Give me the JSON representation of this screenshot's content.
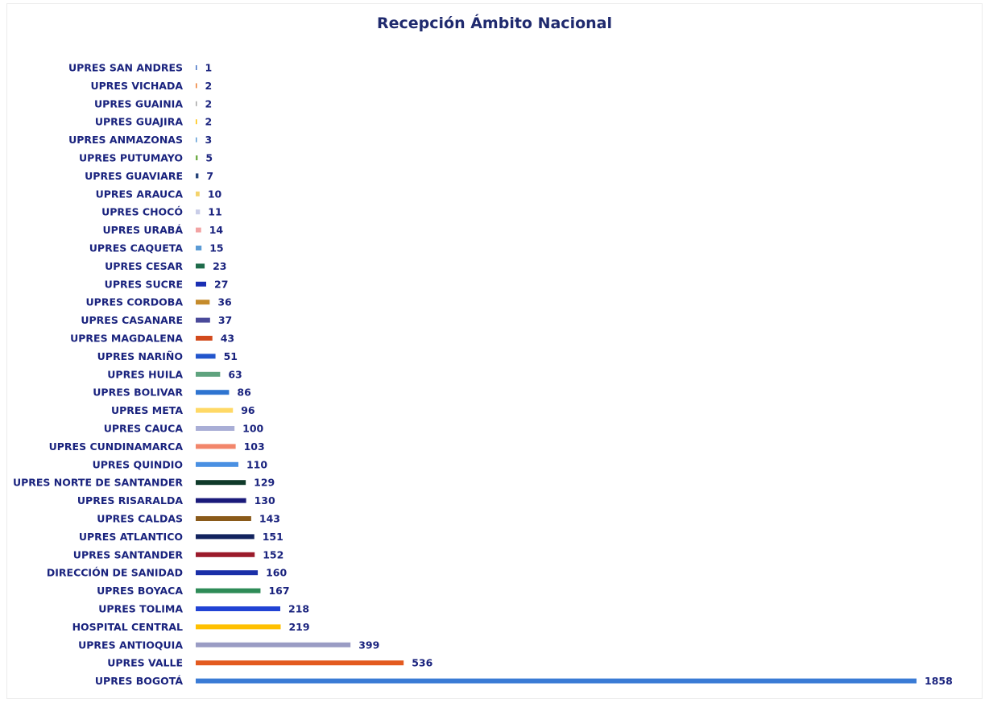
{
  "chart_data": {
    "type": "bar",
    "orientation": "horizontal",
    "title": "Recepción Ámbito Nacional",
    "xlabel": "",
    "ylabel": "",
    "grid": false,
    "legend": "none",
    "xlim": [
      0,
      1858
    ],
    "categories": [
      "UPRES SAN ANDRES",
      "UPRES VICHADA",
      "UPRES GUAINIA",
      "UPRES GUAJIRA",
      "UPRES ANMAZONAS",
      "UPRES PUTUMAYO",
      "UPRES GUAVIARE",
      "UPRES ARAUCA",
      "UPRES CHOCÓ",
      "UPRES URABÁ",
      "UPRES CAQUETA",
      "UPRES CESAR",
      "UPRES SUCRE",
      "UPRES CORDOBA",
      "UPRES CASANARE",
      "UPRES MAGDALENA",
      "UPRES NARIÑO",
      "UPRES HUILA",
      "UPRES BOLIVAR",
      "UPRES META",
      "UPRES CAUCA",
      "UPRES CUNDINAMARCA",
      "UPRES QUINDIO",
      "UPRES NORTE DE SANTANDER",
      "UPRES RISARALDA",
      "UPRES CALDAS",
      "UPRES ATLANTICO",
      "UPRES SANTANDER",
      "DIRECCIÓN DE SANIDAD",
      "UPRES BOYACA",
      "UPRES TOLIMA",
      "HOSPITAL CENTRAL",
      "UPRES ANTIOQUIA",
      "UPRES VALLE",
      "UPRES BOGOTÁ"
    ],
    "values": [
      1,
      2,
      2,
      2,
      3,
      5,
      7,
      10,
      11,
      14,
      15,
      23,
      27,
      36,
      37,
      43,
      51,
      63,
      86,
      96,
      100,
      103,
      110,
      129,
      130,
      143,
      151,
      152,
      160,
      167,
      218,
      219,
      399,
      536,
      1858
    ],
    "colors": [
      "#4472c4",
      "#ed7d31",
      "#a5a5a5",
      "#ffc000",
      "#5b9bd5",
      "#70ad47",
      "#264478",
      "#f4d36b",
      "#c9cde8",
      "#f2a3a3",
      "#5b9bd5",
      "#1e6b4a",
      "#1a2fb3",
      "#c58b2b",
      "#4a4a9a",
      "#d24a1c",
      "#2255cc",
      "#5fa37e",
      "#2e74d0",
      "#ffd966",
      "#a9aed6",
      "#f2866b",
      "#4a90e2",
      "#0f3a2a",
      "#1a1a7a",
      "#8a5a1a",
      "#12235e",
      "#9b1b2b",
      "#1a2fa8",
      "#2e8b57",
      "#2143d4",
      "#ffc000",
      "#9a9cc4",
      "#e35a1f",
      "#3a7bd5"
    ]
  }
}
